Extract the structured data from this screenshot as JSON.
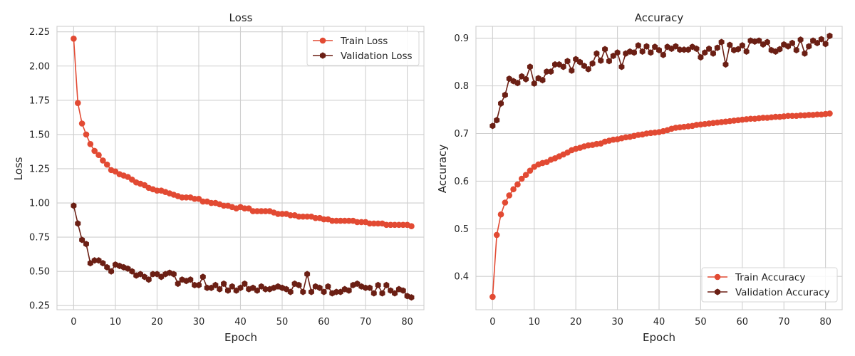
{
  "figure": {
    "colors": {
      "train": "#e24a33",
      "validation": "#6b1f14",
      "grid": "#cfcfcf"
    }
  },
  "chart_data": [
    {
      "type": "line",
      "title": "Loss",
      "xlabel": "Epoch",
      "ylabel": "Loss",
      "xlim": [
        -4,
        84
      ],
      "ylim": [
        0.22,
        2.29
      ],
      "xticks": [
        "0",
        "10",
        "20",
        "30",
        "40",
        "50",
        "60",
        "70",
        "80"
      ],
      "yticks": [
        "0.25",
        "0.50",
        "0.75",
        "1.00",
        "1.25",
        "1.50",
        "1.75",
        "2.00",
        "2.25"
      ],
      "grid": true,
      "legend": "top-right",
      "series": [
        {
          "name": "Train Loss",
          "color": "#e24a33",
          "marker": "circle",
          "values": [
            2.2,
            1.73,
            1.58,
            1.5,
            1.43,
            1.38,
            1.35,
            1.31,
            1.28,
            1.24,
            1.23,
            1.21,
            1.2,
            1.19,
            1.17,
            1.15,
            1.14,
            1.13,
            1.11,
            1.1,
            1.09,
            1.09,
            1.08,
            1.07,
            1.06,
            1.05,
            1.04,
            1.04,
            1.04,
            1.03,
            1.03,
            1.01,
            1.01,
            1.0,
            1.0,
            0.99,
            0.98,
            0.98,
            0.97,
            0.96,
            0.97,
            0.96,
            0.96,
            0.94,
            0.94,
            0.94,
            0.94,
            0.94,
            0.93,
            0.92,
            0.92,
            0.92,
            0.91,
            0.91,
            0.9,
            0.9,
            0.9,
            0.9,
            0.89,
            0.89,
            0.88,
            0.88,
            0.87,
            0.87,
            0.87,
            0.87,
            0.87,
            0.87,
            0.86,
            0.86,
            0.86,
            0.85,
            0.85,
            0.85,
            0.85,
            0.84,
            0.84,
            0.84,
            0.84,
            0.84,
            0.84,
            0.83
          ]
        },
        {
          "name": "Validation Loss",
          "color": "#6b1f14",
          "marker": "hexagon",
          "values": [
            0.98,
            0.85,
            0.73,
            0.7,
            0.56,
            0.58,
            0.58,
            0.56,
            0.53,
            0.5,
            0.55,
            0.54,
            0.53,
            0.52,
            0.5,
            0.47,
            0.48,
            0.46,
            0.44,
            0.48,
            0.48,
            0.46,
            0.48,
            0.49,
            0.48,
            0.41,
            0.44,
            0.43,
            0.44,
            0.4,
            0.4,
            0.46,
            0.38,
            0.38,
            0.4,
            0.37,
            0.41,
            0.36,
            0.39,
            0.36,
            0.38,
            0.41,
            0.37,
            0.38,
            0.36,
            0.39,
            0.37,
            0.37,
            0.38,
            0.39,
            0.38,
            0.37,
            0.35,
            0.41,
            0.4,
            0.35,
            0.48,
            0.35,
            0.39,
            0.38,
            0.35,
            0.39,
            0.34,
            0.35,
            0.35,
            0.37,
            0.36,
            0.4,
            0.41,
            0.39,
            0.38,
            0.38,
            0.34,
            0.4,
            0.34,
            0.4,
            0.36,
            0.34,
            0.37,
            0.36,
            0.32,
            0.31
          ]
        }
      ]
    },
    {
      "type": "line",
      "title": "Accuracy",
      "xlabel": "Epoch",
      "ylabel": "Accuracy",
      "xlim": [
        -4,
        84
      ],
      "ylim": [
        0.33,
        0.925
      ],
      "xticks": [
        "0",
        "10",
        "20",
        "30",
        "40",
        "50",
        "60",
        "70",
        "80"
      ],
      "yticks": [
        "0.4",
        "0.5",
        "0.6",
        "0.7",
        "0.8",
        "0.9"
      ],
      "grid": true,
      "legend": "bottom-right",
      "series": [
        {
          "name": "Train Accuracy",
          "color": "#e24a33",
          "marker": "circle",
          "values": [
            0.357,
            0.487,
            0.53,
            0.555,
            0.57,
            0.583,
            0.593,
            0.605,
            0.613,
            0.622,
            0.63,
            0.635,
            0.638,
            0.64,
            0.645,
            0.648,
            0.652,
            0.656,
            0.66,
            0.665,
            0.668,
            0.67,
            0.673,
            0.675,
            0.676,
            0.678,
            0.679,
            0.683,
            0.685,
            0.687,
            0.688,
            0.69,
            0.692,
            0.693,
            0.695,
            0.697,
            0.698,
            0.7,
            0.701,
            0.702,
            0.703,
            0.705,
            0.707,
            0.71,
            0.712,
            0.713,
            0.714,
            0.715,
            0.716,
            0.718,
            0.719,
            0.72,
            0.721,
            0.722,
            0.723,
            0.724,
            0.725,
            0.726,
            0.727,
            0.728,
            0.729,
            0.73,
            0.731,
            0.731,
            0.732,
            0.733,
            0.733,
            0.734,
            0.735,
            0.735,
            0.736,
            0.737,
            0.737,
            0.737,
            0.738,
            0.738,
            0.739,
            0.739,
            0.74,
            0.74,
            0.741,
            0.742
          ]
        },
        {
          "name": "Validation Accuracy",
          "color": "#6b1f14",
          "marker": "hexagon",
          "values": [
            0.716,
            0.728,
            0.763,
            0.781,
            0.815,
            0.81,
            0.806,
            0.82,
            0.814,
            0.84,
            0.805,
            0.816,
            0.812,
            0.83,
            0.83,
            0.845,
            0.845,
            0.84,
            0.852,
            0.832,
            0.856,
            0.85,
            0.842,
            0.835,
            0.847,
            0.868,
            0.853,
            0.877,
            0.852,
            0.863,
            0.87,
            0.84,
            0.868,
            0.872,
            0.87,
            0.885,
            0.872,
            0.883,
            0.87,
            0.882,
            0.875,
            0.865,
            0.882,
            0.878,
            0.883,
            0.876,
            0.876,
            0.876,
            0.882,
            0.878,
            0.86,
            0.87,
            0.878,
            0.868,
            0.88,
            0.892,
            0.845,
            0.886,
            0.875,
            0.877,
            0.885,
            0.872,
            0.895,
            0.893,
            0.895,
            0.887,
            0.892,
            0.875,
            0.872,
            0.877,
            0.887,
            0.883,
            0.89,
            0.875,
            0.897,
            0.868,
            0.883,
            0.895,
            0.89,
            0.898,
            0.888,
            0.905
          ]
        }
      ]
    }
  ]
}
